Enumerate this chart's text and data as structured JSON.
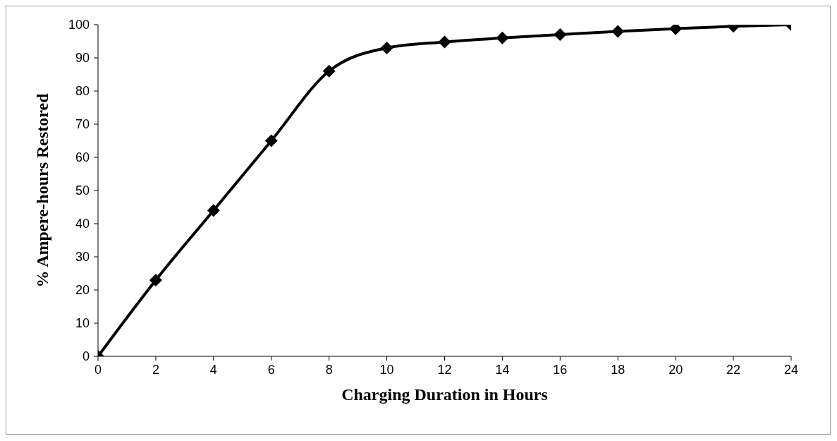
{
  "chart_data": {
    "type": "line",
    "xlabel": "Charging Duration in Hours",
    "ylabel": "% Ampere-hours Restored",
    "x": [
      0,
      2,
      4,
      6,
      8,
      10,
      12,
      14,
      16,
      18,
      20,
      22,
      24
    ],
    "series": [
      {
        "color": "#000000",
        "values": [
          0,
          23,
          44,
          65,
          86,
          93,
          94.8,
          96,
          97,
          98,
          98.8,
          99.5,
          100
        ]
      }
    ],
    "xlim": [
      0,
      24
    ],
    "xticks": [
      0,
      2,
      4,
      6,
      8,
      10,
      12,
      14,
      16,
      18,
      20,
      22,
      24
    ],
    "ylim": [
      0,
      100
    ],
    "yticks": [
      0,
      10,
      20,
      30,
      40,
      50,
      60,
      70,
      80,
      90,
      100
    ],
    "marker": "diamond",
    "line_style": "solid"
  }
}
